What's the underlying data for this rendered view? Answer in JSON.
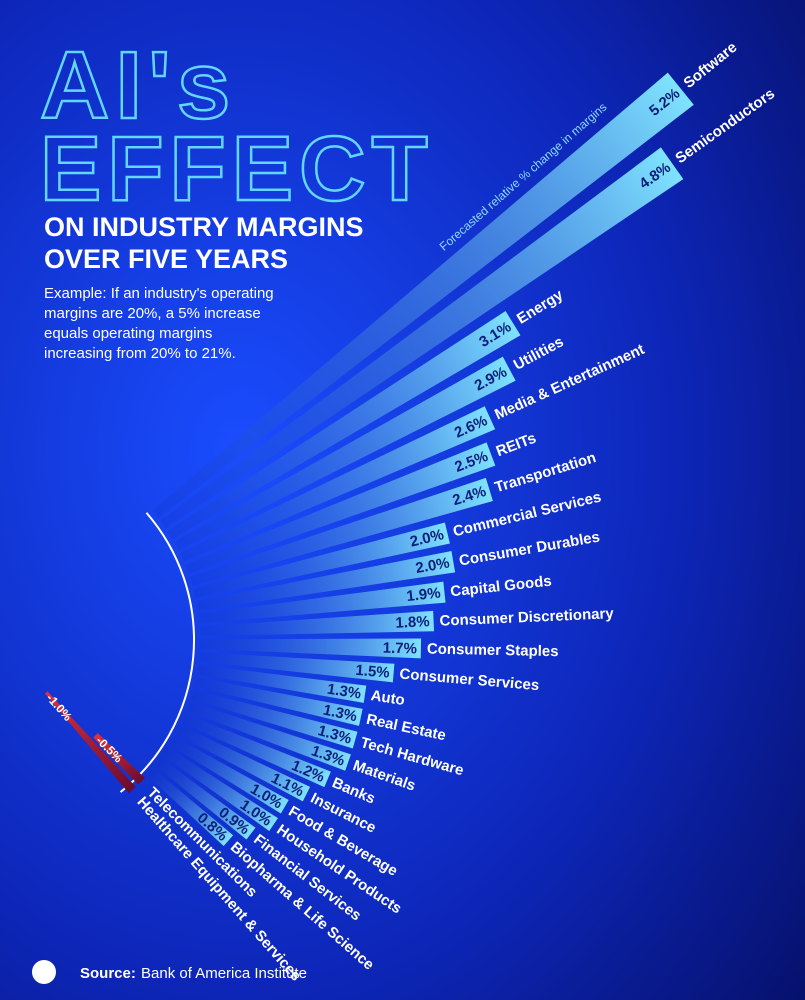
{
  "chart_data": {
    "type": "radial-bar",
    "title_line1": "AI's",
    "title_line2": "EFFECT",
    "subtitle_line1": "ON INDUSTRY MARGINS",
    "subtitle_line2": "OVER FIVE YEARS",
    "note": [
      "Example: If an industry's operating",
      "margins are 20%, a 5% increase",
      "equals operating margins",
      "increasing from 20% to 21%."
    ],
    "axis_label": "Forecasted relative % change in margins",
    "categories": [
      "Software",
      "Semiconductors",
      "Energy",
      "Utilities",
      "Media & Entertainment",
      "REITs",
      "Transportation",
      "Commercial Services",
      "Consumer Durables",
      "Capital Goods",
      "Consumer Discretionary",
      "Consumer Staples",
      "Consumer Services",
      "Auto",
      "Real Estate",
      "Tech Hardware",
      "Materials",
      "Banks",
      "Insurance",
      "Food & Beverage",
      "Household Products",
      "Financial Services",
      "Biopharma & Life Science",
      "Telecommunications",
      "Healthcare Equipment & Services"
    ],
    "values": [
      5.2,
      4.8,
      3.1,
      2.9,
      2.6,
      2.5,
      2.4,
      2.0,
      2.0,
      1.9,
      1.8,
      1.7,
      1.5,
      1.3,
      1.3,
      1.3,
      1.3,
      1.2,
      1.1,
      1.0,
      1.0,
      0.9,
      0.8,
      -0.5,
      -1.0
    ],
    "value_labels": [
      "5.2%",
      "4.8%",
      "3.1%",
      "2.9%",
      "2.6%",
      "2.5%",
      "2.4%",
      "2.0%",
      "2.0%",
      "1.9%",
      "1.8%",
      "1.7%",
      "1.5%",
      "1.3%",
      "1.3%",
      "1.3%",
      "1.3%",
      "1.2%",
      "1.1%",
      "1.0%",
      "1.0%",
      "0.9%",
      "0.8%",
      "-0.5%",
      "-1.0%"
    ],
    "positive_color": "#7fe3ff",
    "negative_color": "#e0303a",
    "source_label": "Source:",
    "source": "Bank of America Institute"
  }
}
